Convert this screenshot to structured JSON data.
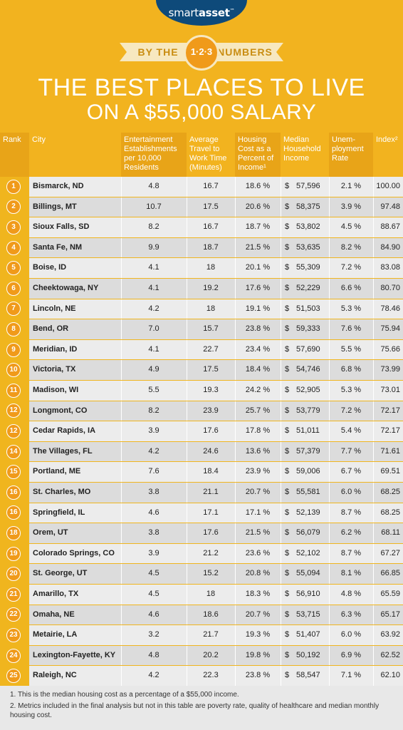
{
  "brand": {
    "name_prefix": "smart",
    "name_suffix": "asset",
    "mark": "™"
  },
  "badge": {
    "left": "BY THE",
    "center": "1·2·3",
    "right": "NUMBERS"
  },
  "title": {
    "line1": "THE BEST PLACES TO LIVE",
    "line2": "ON A $55,000 SALARY"
  },
  "columns": {
    "rank": "Rank",
    "city": "City",
    "entertainment": "Entertainment Establishments per 10,000 Residents",
    "travel": "Average Travel to Work Time (Minutes)",
    "housing": "Housing Cost as a Percent of Income¹",
    "income": "Median Household Income",
    "unemployment": "Unem- ployment Rate",
    "index": "Index²"
  },
  "chart_data": {
    "type": "table",
    "title": "THE BEST PLACES TO LIVE ON A $55,000 SALARY",
    "rows": [
      {
        "rank": "1",
        "city": "Bismarck, ND",
        "ent": "4.8",
        "travel": "16.7",
        "housing": "18.6 %",
        "income": "57,596",
        "unemp": "2.1 %",
        "index": "100.00"
      },
      {
        "rank": "2",
        "city": "Billings, MT",
        "ent": "10.7",
        "travel": "17.5",
        "housing": "20.6 %",
        "income": "58,375",
        "unemp": "3.9 %",
        "index": "97.48"
      },
      {
        "rank": "3",
        "city": "Sioux Falls, SD",
        "ent": "8.2",
        "travel": "16.7",
        "housing": "18.7 %",
        "income": "53,802",
        "unemp": "4.5 %",
        "index": "88.67"
      },
      {
        "rank": "4",
        "city": "Santa Fe, NM",
        "ent": "9.9",
        "travel": "18.7",
        "housing": "21.5 %",
        "income": "53,635",
        "unemp": "8.2 %",
        "index": "84.90"
      },
      {
        "rank": "5",
        "city": "Boise, ID",
        "ent": "4.1",
        "travel": "18",
        "housing": "20.1 %",
        "income": "55,309",
        "unemp": "7.2 %",
        "index": "83.08"
      },
      {
        "rank": "6",
        "city": "Cheektowaga, NY",
        "ent": "4.1",
        "travel": "19.2",
        "housing": "17.6 %",
        "income": "52,229",
        "unemp": "6.6 %",
        "index": "80.70"
      },
      {
        "rank": "7",
        "city": "Lincoln, NE",
        "ent": "4.2",
        "travel": "18",
        "housing": "19.1 %",
        "income": "51,503",
        "unemp": "5.3 %",
        "index": "78.46"
      },
      {
        "rank": "8",
        "city": "Bend, OR",
        "ent": "7.0",
        "travel": "15.7",
        "housing": "23.8 %",
        "income": "59,333",
        "unemp": "7.6 %",
        "index": "75.94"
      },
      {
        "rank": "9",
        "city": "Meridian, ID",
        "ent": "4.1",
        "travel": "22.7",
        "housing": "23.4 %",
        "income": "57,690",
        "unemp": "5.5 %",
        "index": "75.66"
      },
      {
        "rank": "10",
        "city": "Victoria, TX",
        "ent": "4.9",
        "travel": "17.5",
        "housing": "18.4 %",
        "income": "54,746",
        "unemp": "6.8 %",
        "index": "73.99"
      },
      {
        "rank": "11",
        "city": "Madison, WI",
        "ent": "5.5",
        "travel": "19.3",
        "housing": "24.2 %",
        "income": "52,905",
        "unemp": "5.3 %",
        "index": "73.01"
      },
      {
        "rank": "12",
        "city": "Longmont, CO",
        "ent": "8.2",
        "travel": "23.9",
        "housing": "25.7 %",
        "income": "53,779",
        "unemp": "7.2 %",
        "index": "72.17"
      },
      {
        "rank": "12",
        "city": "Cedar Rapids, IA",
        "ent": "3.9",
        "travel": "17.6",
        "housing": "17.8 %",
        "income": "51,011",
        "unemp": "5.4 %",
        "index": "72.17"
      },
      {
        "rank": "14",
        "city": "The Villages, FL",
        "ent": "4.2",
        "travel": "24.6",
        "housing": "13.6 %",
        "income": "57,379",
        "unemp": "7.7 %",
        "index": "71.61"
      },
      {
        "rank": "15",
        "city": "Portland, ME",
        "ent": "7.6",
        "travel": "18.4",
        "housing": "23.9 %",
        "income": "59,006",
        "unemp": "6.7 %",
        "index": "69.51"
      },
      {
        "rank": "16",
        "city": "St. Charles, MO",
        "ent": "3.8",
        "travel": "21.1",
        "housing": "20.7 %",
        "income": "55,581",
        "unemp": "6.0 %",
        "index": "68.25"
      },
      {
        "rank": "16",
        "city": "Springfield, IL",
        "ent": "4.6",
        "travel": "17.1",
        "housing": "17.1 %",
        "income": "52,139",
        "unemp": "8.7 %",
        "index": "68.25"
      },
      {
        "rank": "18",
        "city": "Orem, UT",
        "ent": "3.8",
        "travel": "17.6",
        "housing": "21.5 %",
        "income": "56,079",
        "unemp": "6.2 %",
        "index": "68.11"
      },
      {
        "rank": "19",
        "city": "Colorado Springs, CO",
        "ent": "3.9",
        "travel": "21.2",
        "housing": "23.6 %",
        "income": "52,102",
        "unemp": "8.7 %",
        "index": "67.27"
      },
      {
        "rank": "20",
        "city": "St. George, UT",
        "ent": "4.5",
        "travel": "15.2",
        "housing": "20.8 %",
        "income": "55,094",
        "unemp": "8.1 %",
        "index": "66.85"
      },
      {
        "rank": "21",
        "city": "Amarillo, TX",
        "ent": "4.5",
        "travel": "18",
        "housing": "18.3 %",
        "income": "56,910",
        "unemp": "4.8 %",
        "index": "65.59"
      },
      {
        "rank": "22",
        "city": "Omaha, NE",
        "ent": "4.6",
        "travel": "18.6",
        "housing": "20.7 %",
        "income": "53,715",
        "unemp": "6.3 %",
        "index": "65.17"
      },
      {
        "rank": "23",
        "city": "Metairie, LA",
        "ent": "3.2",
        "travel": "21.7",
        "housing": "19.3 %",
        "income": "51,407",
        "unemp": "6.0 %",
        "index": "63.92"
      },
      {
        "rank": "24",
        "city": "Lexington-Fayette, KY",
        "ent": "4.8",
        "travel": "20.2",
        "housing": "19.8 %",
        "income": "50,192",
        "unemp": "6.9 %",
        "index": "62.52"
      },
      {
        "rank": "25",
        "city": "Raleigh, NC",
        "ent": "4.2",
        "travel": "22.3",
        "housing": "23.8 %",
        "income": "58,547",
        "unemp": "7.1 %",
        "index": "62.10"
      }
    ]
  },
  "footnotes": {
    "one": "1. This is the median housing cost as a percentage of a $55,000 income.",
    "two": "2. Metrics included in the final analysis but not in this table are poverty rate, quality of healthcare and median monthly housing cost."
  },
  "currency_symbol": "$",
  "colors": {
    "gold": "#f0b51e",
    "orange": "#f09a1a",
    "navy": "#0e4a7a"
  }
}
